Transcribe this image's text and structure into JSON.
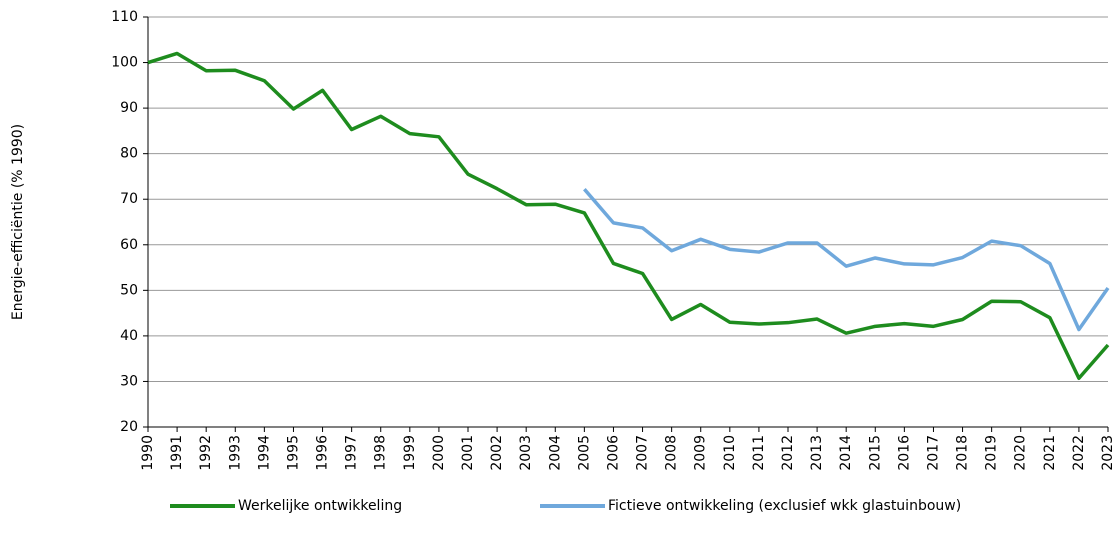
{
  "chart_data": {
    "type": "line",
    "y_label": "Energie-efficiëntie (% 1990)",
    "x": [
      1990,
      1991,
      1992,
      1993,
      1994,
      1995,
      1996,
      1997,
      1998,
      1999,
      2000,
      2001,
      2002,
      2003,
      2004,
      2005,
      2006,
      2007,
      2008,
      2009,
      2010,
      2011,
      2012,
      2013,
      2014,
      2015,
      2016,
      2017,
      2018,
      2019,
      2020,
      2021,
      2022,
      2023
    ],
    "xlim": [
      1990,
      2023
    ],
    "series": [
      {
        "name": "Werkelijke ontwikkeling",
        "color": "#1e8c1e",
        "values": [
          100,
          102,
          98.2,
          98.3,
          96,
          89.8,
          93.9,
          85.3,
          88.2,
          84.4,
          83.7,
          75.5,
          72.3,
          68.8,
          68.9,
          67,
          55.9,
          53.7,
          43.6,
          46.9,
          43,
          42.6,
          42.9,
          43.7,
          40.6,
          42.1,
          42.7,
          42.1,
          43.6,
          47.6,
          47.5,
          44,
          30.7,
          38
        ]
      },
      {
        "name": "Fictieve ontwikkeling (exclusief wkk glastuinbouw)",
        "color": "#6fa8dc",
        "values": [
          null,
          null,
          null,
          null,
          null,
          null,
          null,
          null,
          null,
          null,
          null,
          null,
          null,
          null,
          null,
          72.2,
          64.8,
          63.7,
          58.7,
          61.2,
          59,
          58.4,
          60.4,
          60.4,
          55.3,
          57.1,
          55.8,
          55.6,
          57.2,
          60.8,
          59.8,
          55.9,
          41.4,
          50.5
        ]
      }
    ],
    "ylim": [
      20,
      110
    ],
    "yticks": [
      20,
      30,
      40,
      50,
      60,
      70,
      80,
      90,
      100,
      110
    ],
    "grid": true,
    "legend": "bottom"
  }
}
